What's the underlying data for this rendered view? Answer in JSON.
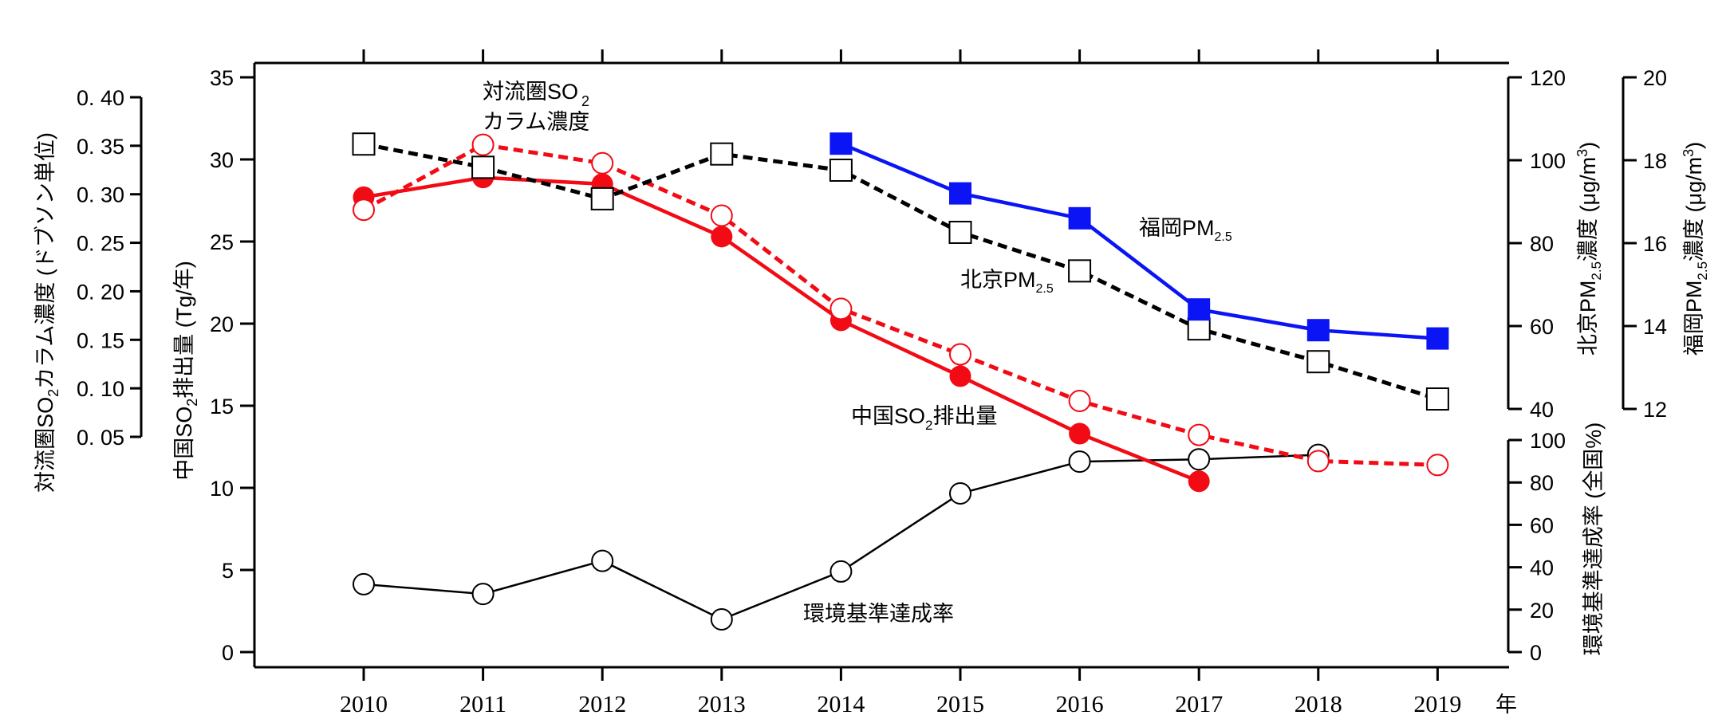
{
  "chart_data": {
    "type": "line",
    "x": [
      2010,
      2011,
      2012,
      2013,
      2014,
      2015,
      2016,
      2017,
      2018,
      2019
    ],
    "xlabel": "年",
    "x_tick_labels": [
      "2010",
      "2011",
      "2012",
      "2013",
      "2014",
      "2015",
      "2016",
      "2017",
      "2018",
      "2019"
    ],
    "grid": false,
    "axes": {
      "so2_column": {
        "label_main": "対流圏SO",
        "label_sub": "2",
        "label_rest": "カラム濃度 (ドブソン単位)",
        "range": [
          0.05,
          0.4
        ],
        "ticks": [
          "0. 05",
          "0. 10",
          "0. 15",
          "0. 20",
          "0. 25",
          "0. 30",
          "0. 35",
          "0. 40"
        ],
        "tick_values": [
          0.05,
          0.1,
          0.15,
          0.2,
          0.25,
          0.3,
          0.35,
          0.4
        ],
        "position": "far-left"
      },
      "emission": {
        "label_main": "中国SO",
        "label_sub": "2",
        "label_rest": "排出量 (Tg/年)",
        "range": [
          0,
          35
        ],
        "ticks": [
          "0",
          "5",
          "10",
          "15",
          "20",
          "25",
          "30",
          "35"
        ],
        "tick_values": [
          0,
          5,
          10,
          15,
          20,
          25,
          30,
          35
        ],
        "position": "left"
      },
      "beijing": {
        "label_main": "北京PM",
        "label_sub": "2.5",
        "label_rest": "濃度 (μg/m",
        "label_sup": "3",
        "label_end": ")",
        "range": [
          40,
          120
        ],
        "ticks": [
          "40",
          "60",
          "80",
          "100",
          "120"
        ],
        "tick_values": [
          40,
          60,
          80,
          100,
          120
        ],
        "position": "right-top"
      },
      "fukuoka": {
        "label_main": "福岡PM",
        "label_sub": "2.5",
        "label_rest": "濃度 (μg/m",
        "label_sup": "3",
        "label_end": ")",
        "range": [
          12,
          20
        ],
        "ticks": [
          "12",
          "14",
          "16",
          "18",
          "20"
        ],
        "tick_values": [
          12,
          14,
          16,
          18,
          20
        ],
        "position": "far-right-top"
      },
      "attainment": {
        "label_main": "環境基準達成率 (全国%)",
        "range": [
          0,
          100
        ],
        "ticks": [
          "0",
          "20",
          "40",
          "60",
          "80",
          "100"
        ],
        "tick_values": [
          0,
          20,
          40,
          60,
          80,
          100
        ],
        "position": "right-bottom"
      }
    },
    "series": [
      {
        "name": "中国SO2排出量",
        "axis": "emission",
        "color": "#f20a14",
        "style": "solid",
        "marker": "filled-circle",
        "values": [
          27.7,
          28.9,
          28.5,
          25.3,
          20.2,
          16.8,
          13.3,
          10.4,
          null,
          null
        ]
      },
      {
        "name": "対流圏SO2カラム濃度",
        "axis": "so2_column",
        "color": "#f20a14",
        "style": "dashed",
        "marker": "open-circle",
        "values": [
          0.284,
          0.351,
          0.332,
          0.278,
          0.182,
          0.135,
          0.087,
          0.052,
          0.025,
          0.021
        ]
      },
      {
        "name": "北京PM2.5",
        "axis": "beijing",
        "color": "#000000",
        "style": "dashed",
        "marker": "open-square",
        "values": [
          103.9,
          98.3,
          90.7,
          101.5,
          97.6,
          82.6,
          73.3,
          59.3,
          51.4,
          42.4
        ]
      },
      {
        "name": "福岡PM2.5",
        "axis": "fukuoka",
        "color": "#0a14f5",
        "style": "solid",
        "marker": "filled-square",
        "values": [
          null,
          null,
          null,
          null,
          18.4,
          17.2,
          16.6,
          14.4,
          13.9,
          13.7
        ]
      },
      {
        "name": "環境基準達成率",
        "axis": "attainment",
        "color": "#000000",
        "style": "thin",
        "marker": "open-circle",
        "values": [
          32,
          27.4,
          43,
          15.4,
          38,
          74.8,
          89.8,
          90.9,
          93,
          null
        ]
      }
    ],
    "annotations": {
      "so2_column": {
        "line1": "対流圏SO",
        "line1_sub": "2",
        "line2": "カラム濃度"
      },
      "beijing": {
        "text": "北京PM",
        "sub": "2.5"
      },
      "fukuoka": {
        "text": "福岡PM",
        "sub": "2.5"
      },
      "emission": {
        "text": "中国SO",
        "sub": "2",
        "rest": "排出量"
      },
      "attainment": {
        "text": "環境基準達成率"
      }
    }
  }
}
